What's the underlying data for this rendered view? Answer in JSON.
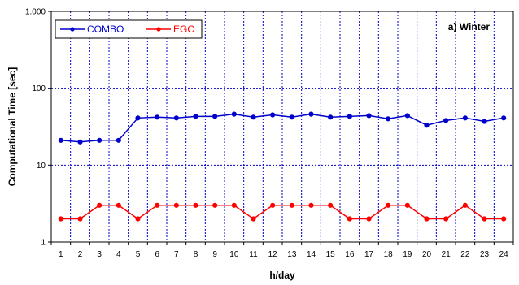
{
  "chart_data": {
    "type": "line",
    "annotation": "a) Winter",
    "xlabel": "h/day",
    "ylabel": "Computational Time [sec]",
    "y_scale": "log",
    "ylim": [
      1,
      1000
    ],
    "y_ticks": [
      1,
      10,
      100,
      1000
    ],
    "y_tick_labels": [
      "1",
      "10",
      "100",
      "1.000"
    ],
    "x": [
      1,
      2,
      3,
      4,
      5,
      6,
      7,
      8,
      9,
      10,
      11,
      12,
      13,
      14,
      15,
      16,
      17,
      18,
      19,
      20,
      21,
      22,
      23,
      24
    ],
    "grid": true,
    "legend_position": "top-left",
    "series": [
      {
        "name": "COMBO",
        "color": "#0000cc",
        "values": [
          21,
          20,
          21,
          21,
          41,
          42,
          41,
          43,
          43,
          46,
          42,
          45,
          42,
          46,
          42,
          43,
          44,
          40,
          44,
          33,
          38,
          41,
          37,
          41
        ]
      },
      {
        "name": "EGO",
        "color": "#ff0000",
        "values": [
          2,
          2,
          3,
          3,
          2,
          3,
          3,
          3,
          3,
          3,
          2,
          3,
          3,
          3,
          3,
          2,
          2,
          3,
          3,
          2,
          2,
          3,
          2,
          2
        ]
      }
    ]
  }
}
